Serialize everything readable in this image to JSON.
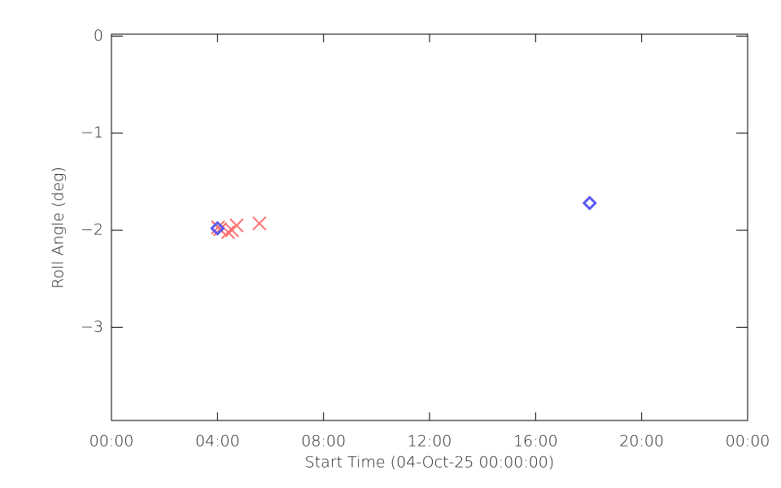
{
  "chart_data": {
    "type": "scatter",
    "x_label": "Start Time (04-Oct-25 00:00:00)",
    "y_label": "Roll Angle (deg)",
    "xlim": [
      0,
      24
    ],
    "xticks": [
      {
        "value": 0,
        "label": "00:00"
      },
      {
        "value": 4,
        "label": "04:00"
      },
      {
        "value": 8,
        "label": "08:00"
      },
      {
        "value": 12,
        "label": "12:00"
      },
      {
        "value": 16,
        "label": "16:00"
      },
      {
        "value": 20,
        "label": "20:00"
      },
      {
        "value": 24,
        "label": "00:00"
      }
    ],
    "ylim": [
      -3.96,
      0.02
    ],
    "yticks": [
      0,
      -1,
      -2,
      -3
    ],
    "series": [
      {
        "color": "#ff7070",
        "marker": "x",
        "x": [
          4.02,
          4.1,
          4.4,
          4.55,
          4.72,
          5.58
        ],
        "values": [
          -1.97,
          -1.99,
          -2.02,
          -2.0,
          -1.95,
          -1.93
        ]
      },
      {
        "color": "#5a5af0",
        "marker": "diamond",
        "x": [
          4.0,
          18.04
        ],
        "values": [
          -1.98,
          -1.72
        ]
      }
    ]
  }
}
